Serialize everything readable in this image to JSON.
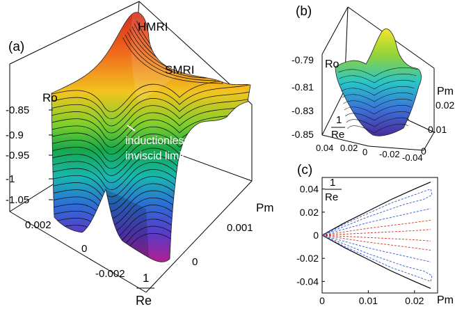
{
  "chart_data": [
    {
      "panel": "(a)",
      "type": "surface3d",
      "axes": {
        "z": {
          "label": "Ro",
          "ticks": [
            "-0.85",
            "-0.9",
            "-0.95",
            "-1",
            "-1.05"
          ],
          "range": [
            -1.05,
            -0.8
          ]
        },
        "x": {
          "label": "Pm",
          "ticks": [
            "0.001",
            "0"
          ],
          "range": [
            0,
            0.0015
          ]
        },
        "y": {
          "label_num": "1",
          "label_den": "Re",
          "ticks": [
            "0.002",
            "0",
            "-0.002"
          ],
          "range": [
            -0.003,
            0.003
          ]
        }
      },
      "annotations": [
        "HMRI",
        "SMRI",
        "inductionless",
        "inviscid limit"
      ],
      "colormap": "rainbow",
      "grid": true
    },
    {
      "panel": "(b)",
      "type": "surface3d",
      "axes": {
        "z": {
          "label": "Ro",
          "ticks": [
            "-0.79",
            "-0.81",
            "-0.83",
            "-0.85"
          ],
          "range": [
            -0.85,
            -0.78
          ]
        },
        "x": {
          "label": "Pm",
          "ticks": [
            "0.02",
            "0.01",
            "0"
          ],
          "range": [
            0,
            0.025
          ]
        },
        "y": {
          "label_num": "1",
          "label_den": "Re",
          "ticks": [
            "0.04",
            "0.02",
            "0",
            "-0.02",
            "-0.04"
          ],
          "range": [
            -0.04,
            0.04
          ]
        }
      },
      "colormap": "rainbow"
    },
    {
      "panel": "(c)",
      "type": "line",
      "xlabel": "Pm",
      "ylabel_num": "1",
      "ylabel_den": "Re",
      "xlim": [
        0,
        0.025
      ],
      "ylim": [
        -0.05,
        0.05
      ],
      "xticks": [
        "0",
        "0.01",
        "0.02"
      ],
      "yticks": [
        "0.04",
        "0.02",
        "0",
        "-0.02",
        "-0.04"
      ],
      "series": [
        {
          "color": "#000000",
          "style": "solid",
          "points": [
            [
              0,
              0
            ],
            [
              0.005,
              0.011
            ],
            [
              0.01,
              0.021
            ],
            [
              0.015,
              0.031
            ],
            [
              0.02,
              0.04
            ],
            [
              0.0235,
              0.046
            ]
          ]
        },
        {
          "color": "#000000",
          "style": "solid",
          "points": [
            [
              0,
              0
            ],
            [
              0.005,
              -0.011
            ],
            [
              0.01,
              -0.021
            ],
            [
              0.015,
              -0.031
            ],
            [
              0.02,
              -0.04
            ],
            [
              0.0235,
              -0.046
            ]
          ]
        },
        {
          "color": "#3355cc",
          "style": "dashed",
          "points": [
            [
              0,
              0
            ],
            [
              0.005,
              0.01
            ],
            [
              0.01,
              0.019
            ],
            [
              0.015,
              0.028
            ],
            [
              0.02,
              0.035
            ],
            [
              0.0235,
              0.04
            ],
            [
              0.0238,
              0.035
            ],
            [
              0.022,
              0.031
            ],
            [
              0.018,
              0.027
            ],
            [
              0.01,
              0.016
            ],
            [
              0,
              0
            ]
          ]
        },
        {
          "color": "#3355cc",
          "style": "dashed",
          "points": [
            [
              0,
              0
            ],
            [
              0.005,
              -0.01
            ],
            [
              0.01,
              -0.019
            ],
            [
              0.015,
              -0.028
            ],
            [
              0.02,
              -0.035
            ],
            [
              0.0235,
              -0.04
            ],
            [
              0.0238,
              -0.035
            ],
            [
              0.022,
              -0.031
            ],
            [
              0.018,
              -0.027
            ],
            [
              0.01,
              -0.016
            ],
            [
              0,
              0
            ]
          ]
        },
        {
          "color": "#3355cc",
          "style": "dashed",
          "points": [
            [
              0,
              0
            ],
            [
              0.01,
              0.011
            ],
            [
              0.02,
              0.02
            ],
            [
              0.0235,
              0.023
            ]
          ]
        },
        {
          "color": "#3355cc",
          "style": "dashed",
          "points": [
            [
              0,
              0
            ],
            [
              0.01,
              -0.011
            ],
            [
              0.02,
              -0.02
            ],
            [
              0.0235,
              -0.023
            ]
          ]
        },
        {
          "color": "#cc3322",
          "style": "dashed",
          "points": [
            [
              0,
              0
            ],
            [
              0.01,
              0.006
            ],
            [
              0.02,
              0.011
            ],
            [
              0.0235,
              0.013
            ]
          ]
        },
        {
          "color": "#cc3322",
          "style": "dashed",
          "points": [
            [
              0,
              0
            ],
            [
              0.01,
              -0.006
            ],
            [
              0.02,
              -0.011
            ],
            [
              0.0235,
              -0.013
            ]
          ]
        },
        {
          "color": "#cc3322",
          "style": "dashed",
          "points": [
            [
              0,
              0
            ],
            [
              0.01,
              0.002
            ],
            [
              0.02,
              0.004
            ],
            [
              0.0235,
              0.005
            ]
          ]
        },
        {
          "color": "#cc3322",
          "style": "dashed",
          "points": [
            [
              0,
              0
            ],
            [
              0.01,
              -0.002
            ],
            [
              0.02,
              -0.004
            ],
            [
              0.0235,
              -0.005
            ]
          ]
        }
      ]
    }
  ]
}
